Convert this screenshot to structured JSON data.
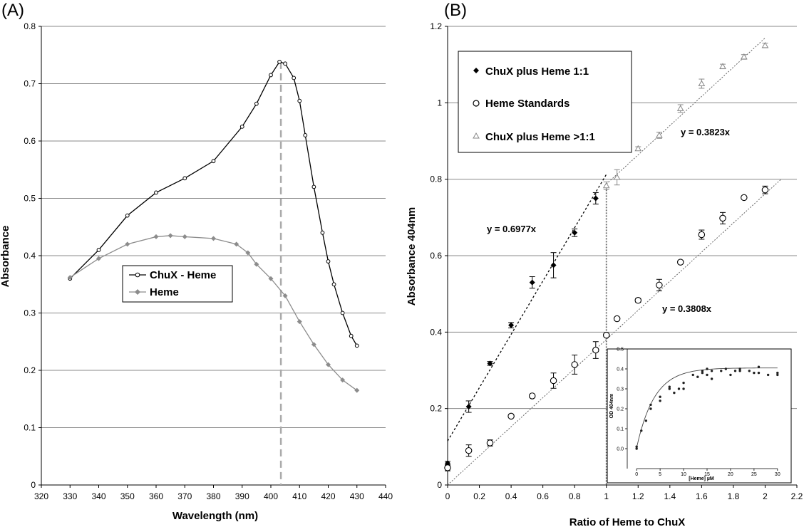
{
  "colors": {
    "grid": "#888888",
    "dark": "#000000",
    "heme": "#8c8c8c",
    "dashed": "#aaaaaa",
    "tri": "#888888"
  },
  "chart_data": [
    {
      "panel": "(A)",
      "type": "line",
      "xlabel": "Wavelength (nm)",
      "ylabel": "Absorbance",
      "xlim": [
        320,
        440
      ],
      "ylim": [
        0,
        0.8
      ],
      "xticks": [
        320,
        330,
        340,
        350,
        360,
        370,
        380,
        390,
        400,
        410,
        420,
        430,
        440
      ],
      "yticks": [
        0,
        0.1,
        0.2,
        0.3,
        0.4,
        0.5,
        0.6,
        0.7,
        0.8
      ],
      "grid": "horizontal",
      "legend_position": "center-left",
      "reference_line_x": 403.5,
      "series": [
        {
          "name": "ChuX - Heme",
          "marker": "open-circle",
          "x": [
            330,
            340,
            350,
            360,
            370,
            380,
            390,
            395,
            400,
            403,
            405,
            408,
            410,
            412,
            415,
            418,
            420,
            422,
            425,
            428,
            430
          ],
          "y": [
            0.36,
            0.41,
            0.47,
            0.51,
            0.535,
            0.565,
            0.625,
            0.665,
            0.715,
            0.738,
            0.735,
            0.71,
            0.67,
            0.61,
            0.52,
            0.44,
            0.39,
            0.35,
            0.3,
            0.26,
            0.243
          ]
        },
        {
          "name": "Heme",
          "marker": "filled-diamond",
          "x": [
            330,
            340,
            350,
            360,
            365,
            370,
            380,
            388,
            392,
            395,
            400,
            405,
            410,
            415,
            420,
            425,
            430
          ],
          "y": [
            0.362,
            0.395,
            0.42,
            0.433,
            0.435,
            0.433,
            0.43,
            0.42,
            0.405,
            0.385,
            0.36,
            0.33,
            0.285,
            0.245,
            0.21,
            0.183,
            0.165
          ]
        }
      ]
    },
    {
      "panel": "(B)",
      "type": "scatter",
      "xlabel": "Ratio of Heme to ChuX",
      "ylabel": "Absorbance 404nm",
      "xlim": [
        0,
        2.2
      ],
      "ylim": [
        0,
        1.2
      ],
      "xticks": [
        0,
        0.2,
        0.4,
        0.6,
        0.8,
        1,
        1.2,
        1.4,
        1.6,
        1.8,
        2,
        2.2
      ],
      "yticks": [
        0,
        0.2,
        0.4,
        0.6,
        0.8,
        1,
        1.2
      ],
      "grid": "horizontal",
      "legend_position": "top-left",
      "reference_line_x": 1,
      "series": [
        {
          "name": "ChuX plus Heme 1:1",
          "marker": "filled-diamond",
          "x": [
            0,
            0.133,
            0.267,
            0.4,
            0.533,
            0.667,
            0.8,
            0.933
          ],
          "y": [
            0.057,
            0.205,
            0.318,
            0.418,
            0.53,
            0.575,
            0.66,
            0.75
          ],
          "err": [
            0.005,
            0.015,
            0.005,
            0.007,
            0.015,
            0.033,
            0.01,
            0.015
          ]
        },
        {
          "name": "Heme Standards",
          "marker": "open-circle",
          "x": [
            0,
            0.133,
            0.267,
            0.4,
            0.533,
            0.667,
            0.8,
            0.933,
            1,
            1.067,
            1.2,
            1.333,
            1.467,
            1.6,
            1.733,
            1.867,
            2
          ],
          "y": [
            0.045,
            0.09,
            0.11,
            0.18,
            0.233,
            0.273,
            0.315,
            0.353,
            0.392,
            0.435,
            0.483,
            0.523,
            0.583,
            0.655,
            0.698,
            0.752,
            0.772
          ],
          "err": [
            0.008,
            0.015,
            0.008,
            0.004,
            0.004,
            0.02,
            0.025,
            0.022,
            0.004,
            0.004,
            0.005,
            0.015,
            0.004,
            0.012,
            0.015,
            0.004,
            0.01
          ]
        },
        {
          "name": "ChuX plus Heme >1:1",
          "marker": "open-triangle",
          "x": [
            1,
            1.067,
            1.2,
            1.333,
            1.467,
            1.6,
            1.733,
            1.867,
            2
          ],
          "y": [
            0.783,
            0.805,
            0.88,
            0.915,
            0.985,
            1.05,
            1.095,
            1.12,
            1.15
          ],
          "err": [
            0.01,
            0.02,
            0.005,
            0.008,
            0.01,
            0.012,
            0.006,
            0.006,
            0.006
          ]
        }
      ],
      "fits": [
        {
          "label": "y = 0.6977x",
          "slope": 0.6977,
          "intercept": 0.115,
          "x_range": [
            0,
            1
          ]
        },
        {
          "label": "y = 0.3823x",
          "slope": 0.3823,
          "intercept": 0.405,
          "x_range": [
            1,
            2
          ]
        },
        {
          "label": "y = 0.3808x",
          "slope": 0.3808,
          "intercept": 0.0,
          "x_range": [
            0,
            2.1
          ]
        }
      ]
    },
    {
      "panel": "inset",
      "type": "scatter",
      "xlabel": "[Heme] µM",
      "ylabel": "OD 404nm",
      "xlim": [
        -2,
        32
      ],
      "ylim": [
        -0.1,
        0.5
      ],
      "xticks": [
        0,
        5,
        10,
        15,
        20,
        25,
        30
      ],
      "yticks": [
        0.0,
        0.1,
        0.2,
        0.3,
        0.4,
        0.5
      ],
      "x": [
        0,
        0,
        1,
        2,
        3,
        3,
        5,
        5,
        7,
        7,
        8,
        9,
        10,
        10,
        12,
        13,
        14,
        14,
        15,
        15,
        16,
        16,
        18,
        19,
        20,
        21,
        22,
        22,
        24,
        25,
        26,
        26,
        28,
        30,
        30
      ],
      "y": [
        0.01,
        0.0,
        0.09,
        0.14,
        0.2,
        0.22,
        0.24,
        0.26,
        0.3,
        0.31,
        0.28,
        0.3,
        0.33,
        0.3,
        0.37,
        0.36,
        0.39,
        0.38,
        0.4,
        0.37,
        0.39,
        0.35,
        0.39,
        0.4,
        0.37,
        0.39,
        0.4,
        0.39,
        0.39,
        0.38,
        0.41,
        0.38,
        0.37,
        0.38,
        0.37
      ]
    }
  ]
}
